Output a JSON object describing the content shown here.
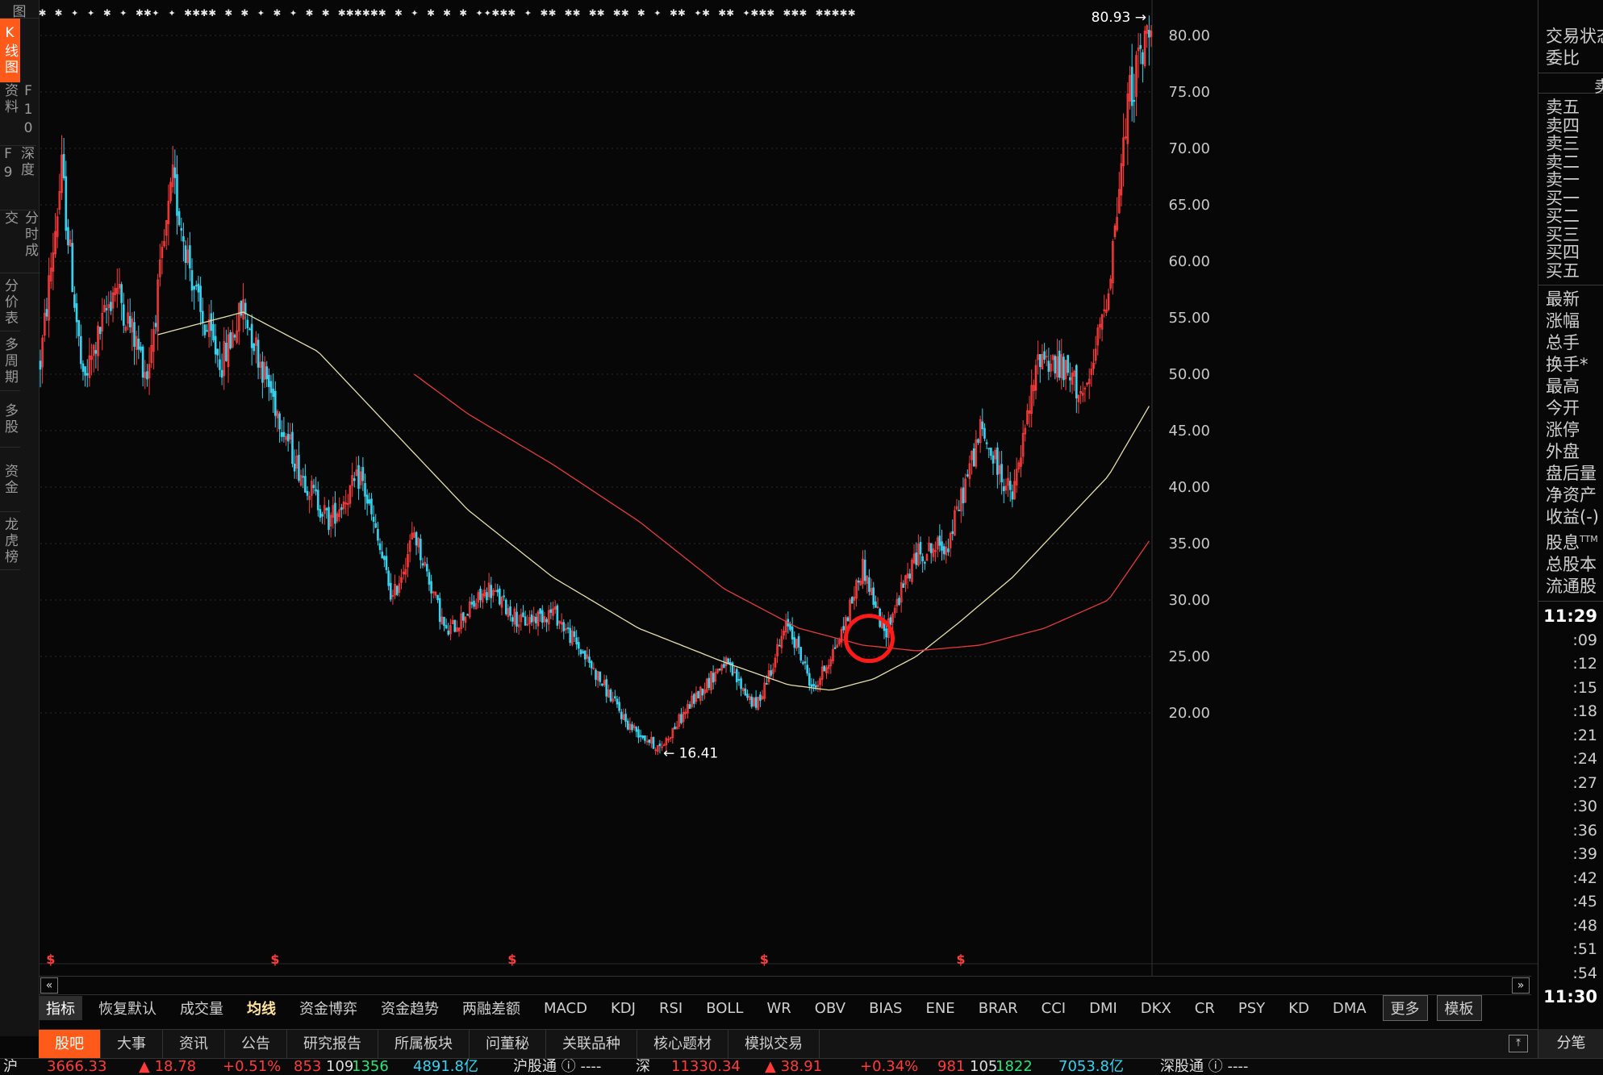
{
  "left_nav": {
    "top_label": "图",
    "items": [
      {
        "label": "K线图",
        "active": true
      },
      {
        "label": "F10资料",
        "active": false
      },
      {
        "label": "深度F9",
        "active": false
      },
      {
        "label": "分时成交",
        "active": false
      },
      {
        "label": "分价表",
        "active": false
      },
      {
        "label": "多周期",
        "active": false
      },
      {
        "label": "多股",
        "active": false
      },
      {
        "label": "资金",
        "active": false
      },
      {
        "label": "龙虎榜",
        "active": false
      }
    ]
  },
  "marker_strip": "✱ ✱ ✦ ✦ ✱ ✦ ✱✱✦ ✦ ✱✱✱✱ ✱ ✱ ✦ ✱ ✦ ✱ ✱ ✱✱✱✱✱✱ ✱ ✦ ✱ ✱ ✱ ✦✦✱✱✱ ✦ ✱✱ ✱✱ ✱✱ ✱✱ ✱ ✦ ✱✱ ✦✱ ✱✱ ✦✱✱✱ ✱✱✱ ✱✱✱✱✱",
  "chart": {
    "price_ticks": [
      "80.00",
      "75.00",
      "70.00",
      "65.00",
      "60.00",
      "55.00",
      "50.00",
      "45.00",
      "40.00",
      "35.00",
      "30.00",
      "25.00",
      "20.00"
    ],
    "high_label": "80.93",
    "low_label": "16.41",
    "dividend_marker": "$",
    "colors": {
      "up": "#ff3b3b",
      "down": "#37d3f0",
      "ma_short": "#e6e0a8",
      "ma_long": "#e63b3b",
      "circle": "#ff1a1a"
    }
  },
  "chart_data": {
    "type": "candlestick",
    "y_range": [
      16,
      82
    ],
    "price_path": [
      {
        "bar": 0,
        "price": 51
      },
      {
        "bar": 10,
        "price": 68
      },
      {
        "bar": 20,
        "price": 49
      },
      {
        "bar": 35,
        "price": 58
      },
      {
        "bar": 50,
        "price": 50
      },
      {
        "bar": 62,
        "price": 67
      },
      {
        "bar": 75,
        "price": 55
      },
      {
        "bar": 85,
        "price": 51
      },
      {
        "bar": 95,
        "price": 56
      },
      {
        "bar": 105,
        "price": 50
      },
      {
        "bar": 120,
        "price": 42
      },
      {
        "bar": 135,
        "price": 37
      },
      {
        "bar": 150,
        "price": 41
      },
      {
        "bar": 165,
        "price": 30
      },
      {
        "bar": 175,
        "price": 36
      },
      {
        "bar": 190,
        "price": 27
      },
      {
        "bar": 210,
        "price": 31
      },
      {
        "bar": 225,
        "price": 28
      },
      {
        "bar": 240,
        "price": 29
      },
      {
        "bar": 255,
        "price": 25
      },
      {
        "bar": 275,
        "price": 19
      },
      {
        "bar": 290,
        "price": 16.8
      },
      {
        "bar": 305,
        "price": 21
      },
      {
        "bar": 320,
        "price": 24.5
      },
      {
        "bar": 335,
        "price": 20.5
      },
      {
        "bar": 350,
        "price": 28
      },
      {
        "bar": 362,
        "price": 22
      },
      {
        "bar": 375,
        "price": 27
      },
      {
        "bar": 385,
        "price": 33
      },
      {
        "bar": 395,
        "price": 27
      },
      {
        "bar": 410,
        "price": 34
      },
      {
        "bar": 425,
        "price": 35
      },
      {
        "bar": 440,
        "price": 45
      },
      {
        "bar": 455,
        "price": 39
      },
      {
        "bar": 468,
        "price": 52
      },
      {
        "bar": 480,
        "price": 50
      },
      {
        "bar": 490,
        "price": 48
      },
      {
        "bar": 500,
        "price": 58
      },
      {
        "bar": 510,
        "price": 75
      },
      {
        "bar": 520,
        "price": 80.9
      }
    ],
    "ma_short": [
      {
        "bar": 55,
        "price": 53.5
      },
      {
        "bar": 95,
        "price": 55.5
      },
      {
        "bar": 130,
        "price": 52
      },
      {
        "bar": 165,
        "price": 45
      },
      {
        "bar": 200,
        "price": 38
      },
      {
        "bar": 240,
        "price": 32
      },
      {
        "bar": 280,
        "price": 27.5
      },
      {
        "bar": 320,
        "price": 24.5
      },
      {
        "bar": 350,
        "price": 22.5
      },
      {
        "bar": 370,
        "price": 22
      },
      {
        "bar": 390,
        "price": 23
      },
      {
        "bar": 410,
        "price": 25
      },
      {
        "bar": 430,
        "price": 28
      },
      {
        "bar": 455,
        "price": 32
      },
      {
        "bar": 480,
        "price": 37
      },
      {
        "bar": 500,
        "price": 41
      },
      {
        "bar": 520,
        "price": 47.5
      }
    ],
    "ma_long": [
      {
        "bar": 175,
        "price": 50
      },
      {
        "bar": 200,
        "price": 46.5
      },
      {
        "bar": 240,
        "price": 42
      },
      {
        "bar": 280,
        "price": 37
      },
      {
        "bar": 320,
        "price": 31
      },
      {
        "bar": 355,
        "price": 27.5
      },
      {
        "bar": 385,
        "price": 26
      },
      {
        "bar": 410,
        "price": 25.5
      },
      {
        "bar": 440,
        "price": 26
      },
      {
        "bar": 470,
        "price": 27.5
      },
      {
        "bar": 500,
        "price": 30
      },
      {
        "bar": 520,
        "price": 35.5
      }
    ],
    "dividend_bars": [
      2,
      107,
      218,
      336,
      428
    ],
    "highlight_circle": {
      "bar": 388,
      "price": 26.6
    }
  },
  "right_panel": {
    "header": [
      "交易状态",
      "委比"
    ],
    "sub_header": "卖",
    "order_book": [
      "卖五",
      "卖四",
      "卖三",
      "卖二",
      "卖一",
      "买一",
      "买二",
      "买三",
      "买四",
      "买五"
    ],
    "stats": [
      "最新",
      "涨幅",
      "总手",
      "换手*",
      "最高",
      "今开",
      "涨停",
      "外盘",
      "盘后量",
      "净资产",
      "收益(-)",
      "股息",
      "总股本",
      "流通股"
    ],
    "ttm": "TTM",
    "times": [
      "11:29",
      ":09",
      ":12",
      ":15",
      ":18",
      ":21",
      ":24",
      ":27",
      ":30",
      ":36",
      ":39",
      ":42",
      ":45",
      ":48",
      ":51",
      ":54",
      "11:30"
    ]
  },
  "indicator_bar": {
    "tabs": [
      "指标",
      "恢复默认",
      "成交量",
      "均线",
      "资金博弈",
      "资金趋势",
      "两融差额",
      "MACD",
      "KDJ",
      "RSI",
      "BOLL",
      "WR",
      "OBV",
      "BIAS",
      "ENE",
      "BRAR",
      "CCI",
      "DMI",
      "DKX",
      "CR",
      "PSY",
      "KD",
      "DMA",
      "更多",
      "模板"
    ]
  },
  "info_bar": {
    "tabs": [
      "股吧",
      "大事",
      "资讯",
      "公告",
      "研究报告",
      "所属板块",
      "问董秘",
      "关联品种",
      "核心题材",
      "模拟交易"
    ],
    "split_label": "分笔"
  },
  "ticker": {
    "items": [
      {
        "text": "沪",
        "color": "white"
      },
      {
        "text": "3666.33",
        "color": "red"
      },
      {
        "text": "▲ 18.78",
        "color": "red"
      },
      {
        "text": "+0.51%",
        "color": "red"
      },
      {
        "text": "853",
        "color": "red"
      },
      {
        "text": "109",
        "color": "white"
      },
      {
        "text": "1356",
        "color": "green"
      },
      {
        "text": "4891.8亿",
        "color": "cyan"
      },
      {
        "text": "沪股通 ⓘ ----",
        "color": "white"
      },
      {
        "text": "深",
        "color": "white"
      },
      {
        "text": "11330.34",
        "color": "red"
      },
      {
        "text": "▲ 38.91",
        "color": "red"
      },
      {
        "text": "+0.34%",
        "color": "red"
      },
      {
        "text": "981",
        "color": "red"
      },
      {
        "text": "105",
        "color": "white"
      },
      {
        "text": "1822",
        "color": "green"
      },
      {
        "text": "7053.8亿",
        "color": "cyan"
      },
      {
        "text": "深股通 ⓘ ----",
        "color": "white"
      }
    ]
  }
}
